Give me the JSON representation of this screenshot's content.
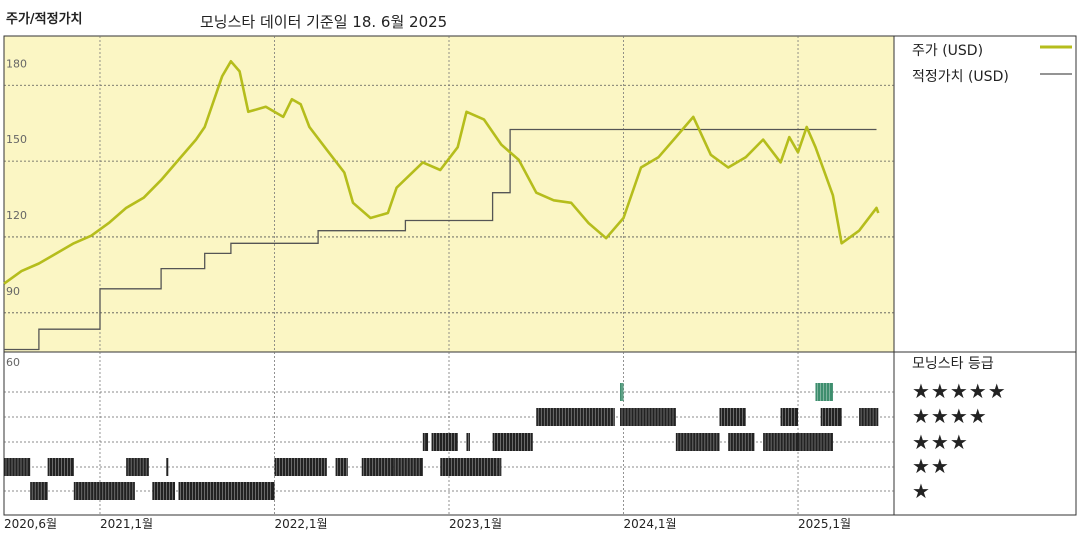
{
  "title": "주가/적정가치",
  "subtitle": "모닝스타 데이터 기준일 18. 6월 2025",
  "legend": {
    "price": "주가 (USD)",
    "fair": "적정가치 (USD)"
  },
  "rating_title": "모닝스타 등급",
  "star_labels": [
    "★★★★★",
    "★★★★",
    "★★★",
    "★★",
    "★"
  ],
  "colors": {
    "price": "#b5bd1c",
    "fair": "#555555",
    "bg": "#fbf6c4",
    "star5": "#3e8e6e",
    "bar": "#222222"
  },
  "chart_data": {
    "type": "line",
    "y_ticks": [
      "180",
      "150",
      "120",
      "90"
    ],
    "rating_y_tick": "60",
    "x_ticks": [
      "2020,6월",
      "2021,1월",
      "2022,1월",
      "2023,1월",
      "2024,1월",
      "2025,1월"
    ],
    "ylim": [
      60,
      190
    ],
    "series": [
      {
        "name": "주가 (USD)",
        "points": [
          [
            2020.45,
            92
          ],
          [
            2020.55,
            97
          ],
          [
            2020.65,
            100
          ],
          [
            2020.75,
            104
          ],
          [
            2020.85,
            108
          ],
          [
            2020.95,
            111
          ],
          [
            2021.05,
            116
          ],
          [
            2021.15,
            122
          ],
          [
            2021.25,
            126
          ],
          [
            2021.35,
            133
          ],
          [
            2021.45,
            141
          ],
          [
            2021.55,
            149
          ],
          [
            2021.6,
            154
          ],
          [
            2021.7,
            174
          ],
          [
            2021.75,
            180
          ],
          [
            2021.8,
            176
          ],
          [
            2021.85,
            160
          ],
          [
            2021.95,
            162
          ],
          [
            2022.05,
            158
          ],
          [
            2022.1,
            165
          ],
          [
            2022.15,
            163
          ],
          [
            2022.2,
            154
          ],
          [
            2022.3,
            145
          ],
          [
            2022.4,
            136
          ],
          [
            2022.45,
            124
          ],
          [
            2022.55,
            118
          ],
          [
            2022.65,
            120
          ],
          [
            2022.7,
            130
          ],
          [
            2022.85,
            140
          ],
          [
            2022.95,
            137
          ],
          [
            2023.05,
            146
          ],
          [
            2023.1,
            160
          ],
          [
            2023.2,
            157
          ],
          [
            2023.3,
            147
          ],
          [
            2023.4,
            141
          ],
          [
            2023.5,
            128
          ],
          [
            2023.6,
            125
          ],
          [
            2023.7,
            124
          ],
          [
            2023.8,
            116
          ],
          [
            2023.9,
            110
          ],
          [
            2024.0,
            118
          ],
          [
            2024.1,
            138
          ],
          [
            2024.2,
            142
          ],
          [
            2024.3,
            150
          ],
          [
            2024.4,
            158
          ],
          [
            2024.5,
            143
          ],
          [
            2024.6,
            138
          ],
          [
            2024.7,
            142
          ],
          [
            2024.8,
            149
          ],
          [
            2024.9,
            140
          ],
          [
            2024.95,
            150
          ],
          [
            2025.0,
            144
          ],
          [
            2025.05,
            154
          ],
          [
            2025.1,
            146
          ],
          [
            2025.2,
            127
          ],
          [
            2025.25,
            108
          ],
          [
            2025.35,
            113
          ],
          [
            2025.45,
            122
          ],
          [
            2025.46,
            120
          ]
        ]
      },
      {
        "name": "적정가치 (USD)",
        "points": [
          [
            2020.45,
            66
          ],
          [
            2020.65,
            66
          ],
          [
            2020.65,
            74
          ],
          [
            2021.0,
            74
          ],
          [
            2021.0,
            90
          ],
          [
            2021.35,
            90
          ],
          [
            2021.35,
            98
          ],
          [
            2021.6,
            98
          ],
          [
            2021.6,
            104
          ],
          [
            2021.75,
            104
          ],
          [
            2021.75,
            108
          ],
          [
            2022.25,
            108
          ],
          [
            2022.25,
            113
          ],
          [
            2022.75,
            113
          ],
          [
            2022.75,
            117
          ],
          [
            2023.25,
            117
          ],
          [
            2023.25,
            128
          ],
          [
            2023.35,
            128
          ],
          [
            2023.35,
            153
          ],
          [
            2025.45,
            153
          ]
        ]
      }
    ],
    "ratings": [
      {
        "stars": 5,
        "intervals": [
          [
            2023.98,
            2024.0
          ],
          [
            2025.1,
            2025.2
          ]
        ]
      },
      {
        "stars": 4,
        "intervals": [
          [
            2023.5,
            2023.95
          ],
          [
            2023.98,
            2024.3
          ],
          [
            2024.55,
            2024.7
          ],
          [
            2024.9,
            2025.0
          ],
          [
            2025.13,
            2025.25
          ],
          [
            2025.35,
            2025.46
          ]
        ]
      },
      {
        "stars": 3,
        "intervals": [
          [
            2022.85,
            2022.88
          ],
          [
            2022.9,
            2023.05
          ],
          [
            2023.1,
            2023.12
          ],
          [
            2023.25,
            2023.48
          ],
          [
            2024.3,
            2024.55
          ],
          [
            2024.6,
            2024.75
          ],
          [
            2024.8,
            2025.0
          ],
          [
            2025.0,
            2025.2
          ]
        ]
      },
      {
        "stars": 2,
        "intervals": [
          [
            2020.45,
            2020.6
          ],
          [
            2020.7,
            2020.85
          ],
          [
            2021.15,
            2021.28
          ],
          [
            2021.38,
            2021.39
          ],
          [
            2022.0,
            2022.3
          ],
          [
            2022.35,
            2022.42
          ],
          [
            2022.5,
            2022.68
          ],
          [
            2022.68,
            2022.85
          ],
          [
            2022.95,
            2023.28
          ],
          [
            2023.28,
            2023.3
          ]
        ]
      },
      {
        "stars": 1,
        "intervals": [
          [
            2020.6,
            2020.7
          ],
          [
            2020.85,
            2021.2
          ],
          [
            2021.3,
            2021.43
          ],
          [
            2021.45,
            2022.0
          ]
        ]
      }
    ]
  }
}
